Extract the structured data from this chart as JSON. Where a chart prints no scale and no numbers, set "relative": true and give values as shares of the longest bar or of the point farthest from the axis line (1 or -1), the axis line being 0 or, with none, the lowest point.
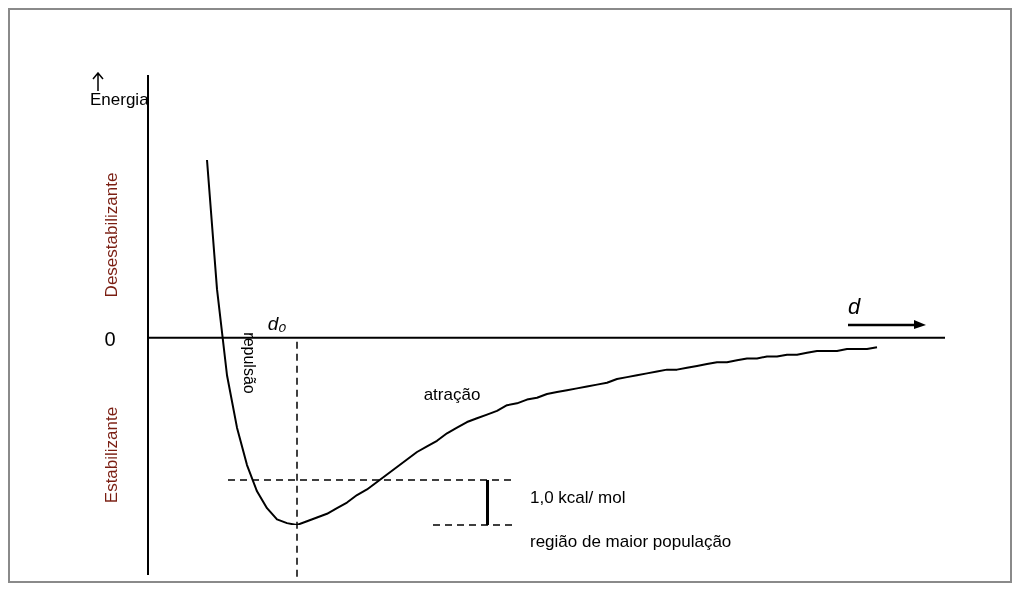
{
  "chart_data": {
    "type": "line",
    "relative": true,
    "ylabel": "Energia",
    "xlabel": "d",
    "marker": "none",
    "line_style": "solid",
    "legend": false,
    "categories": [
      null,
      null,
      null,
      null,
      null,
      null,
      null,
      null,
      null,
      null,
      null,
      null,
      null,
      null,
      null,
      null,
      null,
      null,
      null,
      null,
      null,
      null,
      null,
      null,
      null,
      null,
      null,
      null,
      null,
      null,
      null,
      null,
      null,
      null,
      null,
      null,
      null,
      null,
      null,
      null,
      null,
      null,
      null,
      null,
      null,
      null,
      null,
      null,
      null,
      null,
      null,
      null,
      null,
      null,
      null,
      null,
      null,
      null,
      null,
      null,
      null,
      null,
      null,
      null,
      null,
      null,
      null,
      null
    ],
    "series": [
      {
        "color": "#000000",
        "values": [
          0.95,
          0.26,
          -0.2,
          -0.48,
          -0.68,
          -0.82,
          -0.91,
          -0.97,
          -0.99,
          -1,
          -0.98,
          -0.96,
          -0.94,
          -0.91,
          -0.88,
          -0.84,
          -0.81,
          -0.77,
          -0.73,
          -0.69,
          -0.65,
          -0.61,
          -0.58,
          -0.55,
          -0.51,
          -0.48,
          -0.45,
          -0.43,
          -0.41,
          -0.39,
          -0.36,
          -0.35,
          -0.33,
          -0.32,
          -0.3,
          -0.29,
          -0.28,
          -0.27,
          -0.26,
          -0.25,
          -0.24,
          -0.22,
          -0.21,
          -0.2,
          -0.19,
          -0.18,
          -0.17,
          -0.17,
          -0.16,
          -0.15,
          -0.14,
          -0.13,
          -0.13,
          -0.12,
          -0.11,
          -0.11,
          -0.1,
          -0.1,
          -0.09,
          -0.09,
          -0.08,
          -0.07,
          -0.07,
          -0.07,
          -0.06,
          -0.06,
          -0.06,
          -0.05
        ]
      }
    ],
    "ref_lines": [
      {
        "axis": "y",
        "value": -0.76,
        "label": "1,0 kcal/ mol",
        "line_style": "dashed",
        "color": "#000000"
      },
      {
        "axis": "y",
        "value": -1,
        "line_style": "dashed",
        "color": "#000000"
      }
    ],
    "annotations": [
      "0",
      "Desestabilizante",
      "Estabilizante",
      "repulsão",
      "atração",
      "região de maior população",
      "d₀"
    ]
  }
}
